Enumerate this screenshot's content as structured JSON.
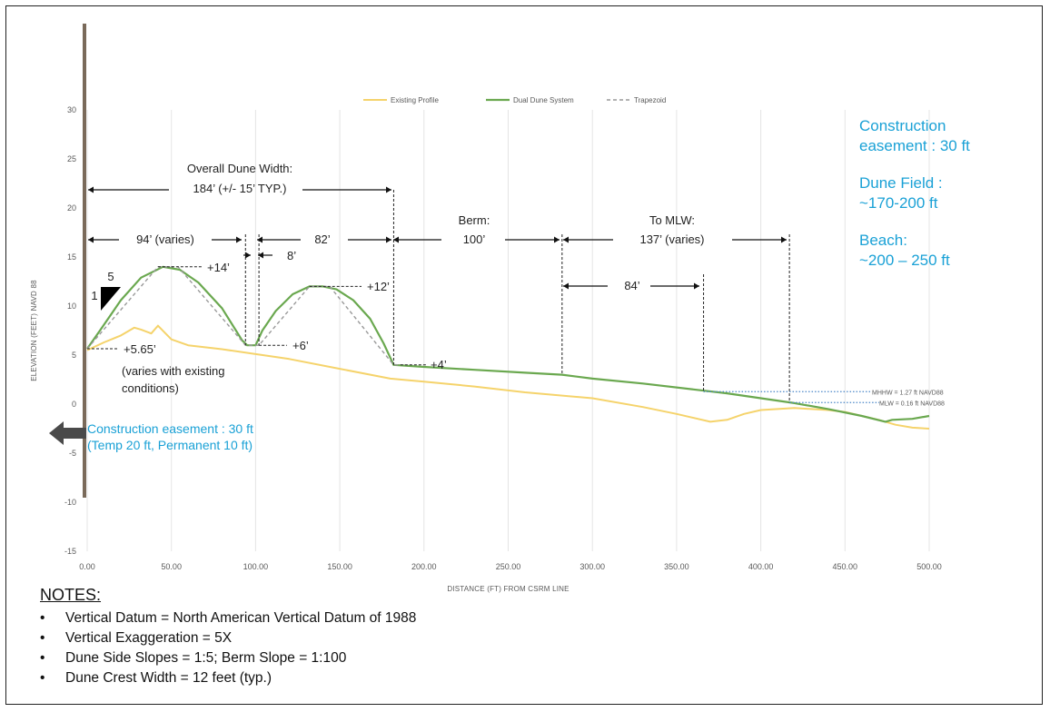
{
  "chart_data": {
    "type": "line",
    "xlabel": "DISTANCE (FT) FROM CSRM LINE",
    "ylabel": "ELEVATION (FEET) NAVD 88",
    "xlim": [
      0,
      500
    ],
    "ylim": [
      -15,
      30
    ],
    "x_ticks": [
      "0.00",
      "50.00",
      "100.00",
      "150.00",
      "200.00",
      "250.00",
      "300.00",
      "350.00",
      "400.00",
      "450.00",
      "500.00"
    ],
    "y_ticks": [
      "30",
      "25",
      "20",
      "15",
      "10",
      "5",
      "0",
      "-5",
      "-10",
      "-15"
    ],
    "grid": "vertical",
    "legend_position": "top",
    "colors": {
      "existing": "#f5d36b",
      "dual": "#6aa84f",
      "trapezoid": "#999999",
      "note_blue": "#1aa1d6",
      "mhw_line": "#4a86c8"
    },
    "series": [
      {
        "name": "Existing Profile",
        "x": [
          0,
          10,
          20,
          28,
          32,
          38,
          42,
          46,
          50,
          60,
          80,
          100,
          120,
          150,
          180,
          200,
          230,
          260,
          300,
          330,
          350,
          370,
          380,
          390,
          400,
          410,
          420,
          430,
          440,
          450,
          460,
          470,
          480,
          490,
          500
        ],
        "y": [
          5.5,
          6.3,
          7.0,
          7.8,
          7.6,
          7.2,
          8.0,
          7.3,
          6.6,
          6.0,
          5.6,
          5.1,
          4.6,
          3.6,
          2.6,
          2.3,
          1.8,
          1.2,
          0.6,
          -0.3,
          -1.0,
          -1.8,
          -1.6,
          -1.0,
          -0.6,
          -0.5,
          -0.4,
          -0.5,
          -0.6,
          -0.8,
          -1.2,
          -1.6,
          -2.1,
          -2.4,
          -2.5
        ]
      },
      {
        "name": "Dual Dune System",
        "x": [
          0,
          8,
          20,
          32,
          45,
          55,
          66,
          80,
          92,
          95,
          100,
          104,
          112,
          122,
          132,
          140,
          148,
          158,
          168,
          176,
          182,
          200,
          230,
          260,
          282,
          300,
          330,
          360,
          380,
          400,
          420,
          440,
          460,
          474,
          478,
          490,
          500
        ],
        "y": [
          5.65,
          7.6,
          10.6,
          12.9,
          14.0,
          13.7,
          12.4,
          9.8,
          6.5,
          6.0,
          6.0,
          7.5,
          9.5,
          11.2,
          12.0,
          12.0,
          11.7,
          10.6,
          8.7,
          6.2,
          4.0,
          3.8,
          3.5,
          3.2,
          3.0,
          2.6,
          2.1,
          1.5,
          1.1,
          0.6,
          0.1,
          -0.5,
          -1.2,
          -1.8,
          -1.6,
          -1.5,
          -1.2
        ]
      },
      {
        "name": "Trapezoid",
        "x": [
          0,
          42,
          54,
          94,
          102,
          132,
          144,
          182,
          186
        ],
        "y": [
          5.65,
          14,
          14,
          6,
          6,
          12,
          12,
          4,
          4
        ]
      }
    ],
    "annotations": {
      "overall_width": [
        "Overall Dune Width:",
        "184’ (+/- 15’ TYP.)"
      ],
      "dim_94": "94’ (varies)",
      "dim_82": "82’",
      "dim_8": "8’",
      "berm": [
        "Berm:",
        "100’"
      ],
      "to_mlw": [
        "To MLW:",
        "137’ (varies)"
      ],
      "dim_84": "84’",
      "elev_14": "+14’",
      "elev_12": "+12’",
      "elev_6": "+6’",
      "elev_4": "+4’",
      "elev_565": "+5.65’",
      "varies_note": [
        "(varies with existing",
        "conditions)"
      ],
      "slope_run": "5",
      "slope_rise": "1",
      "mhhw": "MHHW = 1.27 ft NAVD88",
      "mlw": "MLW = 0.16 ft NAVD88",
      "mhhw_y": 1.27,
      "mlw_y": 0.16
    }
  },
  "right_notes": {
    "construction": [
      "Construction",
      "easement : 30 ft"
    ],
    "dune_field": [
      "Dune Field :",
      "~170-200 ft"
    ],
    "beach": [
      "Beach:",
      "~200 – 250 ft"
    ]
  },
  "easement_note": [
    "Construction easement : 30 ft",
    "(Temp 20 ft, Permanent 10 ft)"
  ],
  "notes": {
    "title": "NOTES:",
    "bullet": "•",
    "items": [
      "Vertical Datum = North American Vertical Datum of 1988",
      "Vertical Exaggeration = 5X",
      "Dune Side Slopes = 1:5; Berm Slope = 1:100",
      "Dune Crest Width = 12 feet (typ.)"
    ]
  }
}
